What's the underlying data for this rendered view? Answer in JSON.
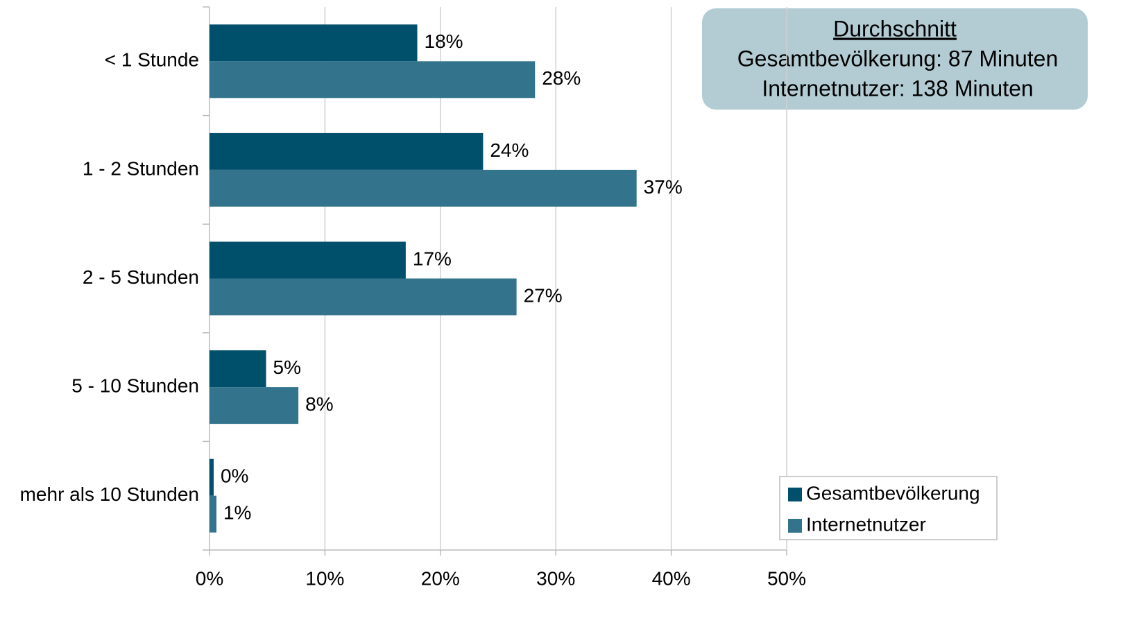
{
  "chart_data": {
    "type": "barh",
    "categories": [
      "< 1 Stunde",
      "1 - 2 Stunden",
      "2 - 5 Stunden",
      "5 - 10 Stunden",
      "mehr als 10 Stunden"
    ],
    "series": [
      {
        "name": "Gesamtbevölkerung",
        "color": "#004f6b",
        "values": [
          18,
          23.7,
          17,
          4.9,
          0.36
        ],
        "value_labels": [
          "18%",
          "24%",
          "17%",
          "5%",
          "0%"
        ]
      },
      {
        "name": "Internetnutzer",
        "color": "#33748c",
        "values": [
          28.2,
          37,
          26.6,
          7.7,
          0.6
        ],
        "value_labels": [
          "28%",
          "37%",
          "27%",
          "8%",
          "1%"
        ]
      }
    ],
    "xlim": [
      0,
      50
    ],
    "xticks": [
      {
        "value": 0,
        "label": "0%"
      },
      {
        "value": 10,
        "label": "10%"
      },
      {
        "value": 20,
        "label": "20%"
      },
      {
        "value": 30,
        "label": "30%"
      },
      {
        "value": 40,
        "label": "40%"
      },
      {
        "value": 50,
        "label": "50%"
      }
    ],
    "grid": true,
    "legend": "lower right",
    "annotation": {
      "title": "Durchschnitt",
      "lines": [
        "Gesamtbevölkerung: 87 Minuten",
        "Internetnutzer: 138 Minuten"
      ]
    }
  }
}
